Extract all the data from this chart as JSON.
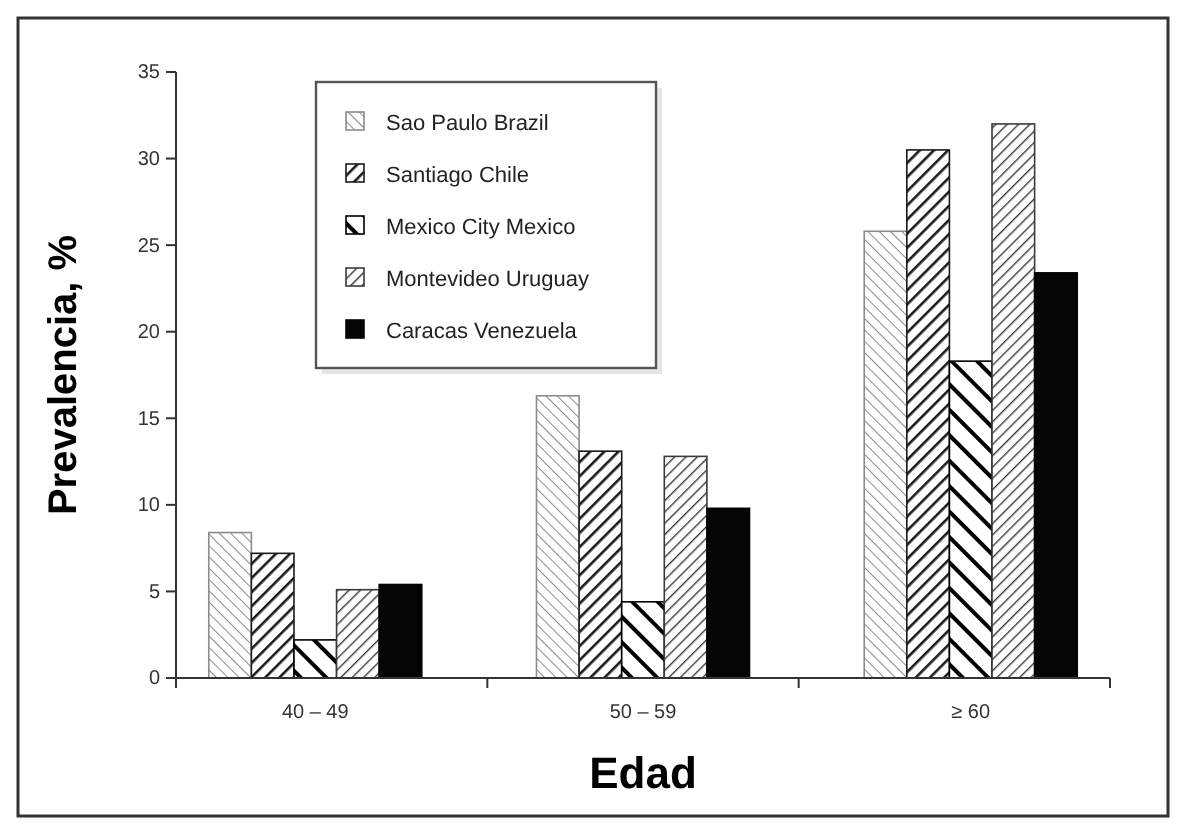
{
  "chart_data": {
    "type": "bar",
    "xlabel": "Edad",
    "ylabel": "Prevalencia, %",
    "categories": [
      "40 – 49",
      "50 – 59",
      "≥ 60"
    ],
    "ylim": [
      0,
      35
    ],
    "yticks": [
      0,
      5,
      10,
      15,
      20,
      25,
      30,
      35
    ],
    "legend": "top left",
    "series": [
      {
        "name": "Sao Paulo Brazil",
        "color": "#8c8c8c",
        "values": [
          8.4,
          16.3,
          25.8
        ]
      },
      {
        "name": "Santiago Chile",
        "color": "#1a1a1a",
        "values": [
          7.2,
          13.1,
          30.5
        ]
      },
      {
        "name": "Mexico City Mexico",
        "color": "#000000",
        "values": [
          2.2,
          4.4,
          18.3
        ]
      },
      {
        "name": "Montevideo Uruguay",
        "color": "#3a3a3a",
        "values": [
          5.1,
          12.8,
          32
        ]
      },
      {
        "name": "Caracas Venezuela",
        "color": "#050505",
        "values": [
          5.4,
          9.8,
          23.4
        ]
      }
    ]
  }
}
